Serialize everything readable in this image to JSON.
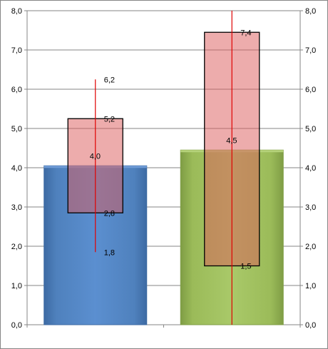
{
  "chart_data": {
    "type": "bar",
    "categories": [
      "",
      ""
    ],
    "ylim": [
      0,
      8
    ],
    "y_ticks": [
      "0,0",
      "1,0",
      "2,0",
      "3,0",
      "4,0",
      "5,0",
      "6,0",
      "7,0",
      "8,0"
    ],
    "y_tick_values": [
      0,
      1,
      2,
      3,
      4,
      5,
      6,
      7,
      8
    ],
    "grid": true,
    "secondary_axis": true,
    "bars": [
      {
        "value": 4.05,
        "value_label": "4,0",
        "color": "#4f81bd"
      },
      {
        "value": 4.45,
        "value_label": "4,5",
        "color": "#9bbb59"
      }
    ],
    "boxes": [
      {
        "low": 2.85,
        "high": 5.25,
        "low_label": "2,8",
        "high_label": "5,2",
        "color": "#e6a0a0"
      },
      {
        "low": 1.5,
        "high": 7.45,
        "low_label": "1,5",
        "high_label": "7,4",
        "color": "#e6a0a0"
      }
    ],
    "whiskers": [
      {
        "low": 1.85,
        "high": 6.25,
        "low_label": "1,8",
        "high_label": "6,2",
        "color": "#e00000"
      },
      {
        "low": 0,
        "high": 8,
        "low_label": "",
        "high_label": "",
        "color": "#e00000"
      }
    ]
  }
}
